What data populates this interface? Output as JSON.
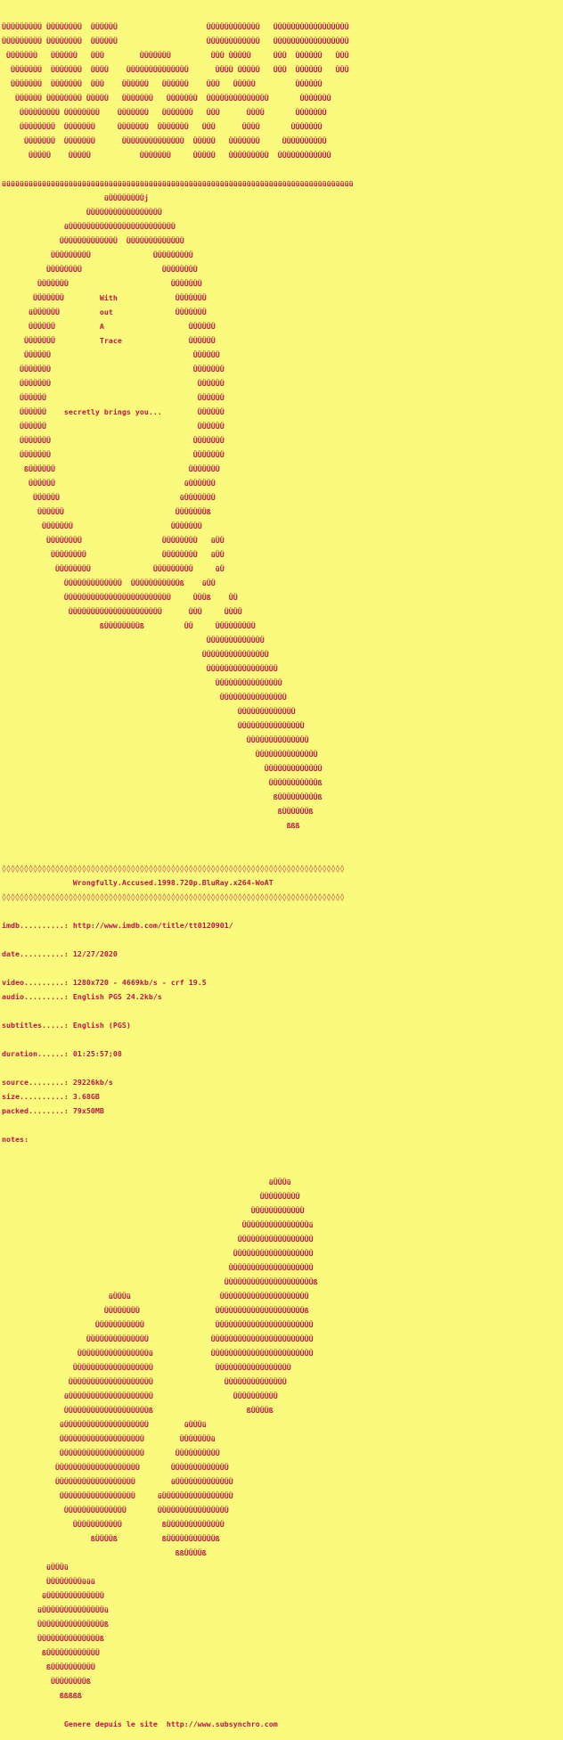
{
  "colors": {
    "background": "#fafa7d",
    "foreground": "#c11248"
  },
  "release_info": {
    "group_name_expanded": [
      "With",
      "out",
      "A",
      "Trace"
    ],
    "tagline": "secretly brings you...",
    "title": "Wrongfully.Accused.1998.720p.BluRay.x264-WoAT",
    "imdb": "http://www.imdb.com/title/tt0120901/",
    "date": "12/27/2020",
    "video": "1280x720 - 4669kb/s - crf 19.5",
    "audio": "English PGS 24.2kb/s",
    "subtitles": "English (PGS)",
    "duration": "01:25:57;08",
    "source": "29226kb/s",
    "size": "3.68GB",
    "packed": "79x50MB",
    "notes": "",
    "footer": "Genere depuis le site  http://www.subsynchro.com"
  },
  "nfo_lines": [
    "ÜÜÜÜÜÜÜÜÜ ÜÜÜÜÜÜÜÜ  ÜÜÜÜÜÜ                    ÜÜÜÜÜÜÜÜÜÜÜÜ   ÜÜÜÜÜÜÜÜÜÜÜÜÜÜÜÜÜ",
    "ÜÜÜÜÜÜÜÜÜ ÜÜÜÜÜÜÜÜ  ÜÜÜÜÜÜ                    ÜÜÜÜÜÜÜÜÜÜÜÜ   ÜÜÜÜÜÜÜÜÜÜÜÜÜÜÜÜÜ",
    " ÜÜÜÜÜÜÜ   ÜÜÜÜÜÜ   ÜÜÜ        ÜÜÜÜÜÜÜ         ÜÜÜ ÜÜÜÜÜ     ÜÜÜ  ÜÜÜÜÜÜ   ÜÜÜ",
    "  ÜÜÜÜÜÜÜ  ÜÜÜÜÜÜÜ  ÜÜÜÜ    ÜÜÜÜÜÜÜÜÜÜÜÜÜÜ      ÜÜÜÜ ÜÜÜÜÜ   ÜÜÜ  ÜÜÜÜÜÜ   ÜÜÜ",
    "  ÜÜÜÜÜÜÜ  ÜÜÜÜÜÜÜ  ÜÜÜ    ÜÜÜÜÜÜ   ÜÜÜÜÜÜ    ÜÜÜ   ÜÜÜÜÜ         ÜÜÜÜÜÜ",
    "   ÜÜÜÜÜÜ ÜÜÜÜÜÜÜÜ ÜÜÜÜÜ   ÜÜÜÜÜÜÜ   ÜÜÜÜÜÜÜ  ÜÜÜÜÜÜÜÜÜÜÜÜÜÜ       ÜÜÜÜÜÜÜ",
    "    ÜÜÜÜÜÜÜÜÜ ÜÜÜÜÜÜÜÜ    ÜÜÜÜÜÜÜ   ÜÜÜÜÜÜÜ   ÜÜÜ      ÜÜÜÜ       ÜÜÜÜÜÜÜ",
    "    ÜÜÜÜÜÜÜÜ  ÜÜÜÜÜÜÜ     ÜÜÜÜÜÜÜ  ÜÜÜÜÜÜÜ   ÜÜÜ      ÜÜÜÜ       ÜÜÜÜÜÜÜ",
    "     ÜÜÜÜÜÜÜ  ÜÜÜÜÜÜÜ      ÜÜÜÜÜÜÜÜÜÜÜÜÜÜ  ÜÜÜÜÜ   ÜÜÜÜÜÜÜ     ÜÜÜÜÜÜÜÜÜÜ",
    "      ÜÜÜÜÜ    ÜÜÜÜÜ           ÜÜÜÜÜÜÜ     ÜÜÜÜÜ   ÜÜÜÜÜÜÜÜÜ  ÜÜÜÜÜÜÜÜÜÜÜÜ",
    "",
    "üüüüüüüüüüüüüüüüüüüüüüüüüüüüüüüüüüüüüüüüüüüüüüüüüüüüüüüüüüüüüüüüüüüüüüüüüüüüüüü",
    "                       üÜÜÜÜÜÜÜÜj",
    "                   ÜÜÜÜÜÜÜÜÜÜÜÜÜÜÜÜÜ",
    "              üÜÜÜÜÜÜÜÜÜÜÜÜÜÜÜÜÜÜÜÜÜÜÜÜ",
    "             ÜÜÜÜÜÜÜÜÜÜÜÜÜ  ÜÜÜÜÜÜÜÜÜÜÜÜÜ",
    "           ÜÜÜÜÜÜÜÜÜ              ÜÜÜÜÜÜÜÜÜ",
    "          ÜÜÜÜÜÜÜÜ                  ÜÜÜÜÜÜÜÜ",
    "        ÜÜÜÜÜÜÜ                       ÜÜÜÜÜÜÜ",
    "       ÜÜÜÜÜÜÜ        With             ÜÜÜÜÜÜÜ",
    "      üÜÜÜÜÜÜ         out              ÜÜÜÜÜÜÜ",
    "      ÜÜÜÜÜÜ          A                   ÜÜÜÜÜÜ",
    "     ÜÜÜÜÜÜÜ          Trace               ÜÜÜÜÜÜ",
    "     ÜÜÜÜÜÜ                                ÜÜÜÜÜÜ",
    "    ÜÜÜÜÜÜÜ                                ÜÜÜÜÜÜÜ",
    "    ÜÜÜÜÜÜÜ                                 ÜÜÜÜÜÜ",
    "    ÜÜÜÜÜÜ                                  ÜÜÜÜÜÜ",
    "    ÜÜÜÜÜÜ    secretly brings you...        ÜÜÜÜÜÜ",
    "    ÜÜÜÜÜÜ                                  ÜÜÜÜÜÜ",
    "    ÜÜÜÜÜÜÜ                                ÜÜÜÜÜÜÜ",
    "    ÜÜÜÜÜÜÜ                                ÜÜÜÜÜÜÜ",
    "     ßÜÜÜÜÜÜ                              ÜÜÜÜÜÜÜ",
    "      ÜÜÜÜÜÜ                             üÜÜÜÜÜÜ",
    "       ÜÜÜÜÜÜ                           üÜÜÜÜÜÜÜ",
    "        ÜÜÜÜÜÜ                         ÜÜÜÜÜÜÜß",
    "         ÜÜÜÜÜÜÜ                      ÜÜÜÜÜÜÜ",
    "          ÜÜÜÜÜÜÜÜ                  ÜÜÜÜÜÜÜÜ   üÜÜ",
    "           ÜÜÜÜÜÜÜÜ                 ÜÜÜÜÜÜÜÜ   üÜÜ",
    "            ÜÜÜÜÜÜÜÜ              ÜÜÜÜÜÜÜÜÜ     üÜ",
    "              ÜÜÜÜÜÜÜÜÜÜÜÜÜ  ÜÜÜÜÜÜÜÜÜÜÜß    üÜÜ",
    "              ÜÜÜÜÜÜÜÜÜÜÜÜÜÜÜÜÜÜÜÜÜÜÜÜ     ÜÜÜß    ÜÜ",
    "               ÜÜÜÜÜÜÜÜÜÜÜÜÜÜÜÜÜÜÜÜÜ      ÜÜÜ     ÜÜÜÜ",
    "                      ßÜÜÜÜÜÜÜÜß         ÜÜ     ÜÜÜÜÜÜÜÜÜ",
    "                                              ÜÜÜÜÜÜÜÜÜÜÜÜÜ",
    "                                             ÜÜÜÜÜÜÜÜÜÜÜÜÜÜÜ",
    "                                              ÜÜÜÜÜÜÜÜÜÜÜÜÜÜÜÜ",
    "                                                ÜÜÜÜÜÜÜÜÜÜÜÜÜÜÜ",
    "                                                 ÜÜÜÜÜÜÜÜÜÜÜÜÜÜÜ",
    "                                                     ÜÜÜÜÜÜÜÜÜÜÜÜÜ",
    "                                                     ÜÜÜÜÜÜÜÜÜÜÜÜÜÜÜ",
    "                                                       ÜÜÜÜÜÜÜÜÜÜÜÜÜÜ",
    "                                                         ÜÜÜÜÜÜÜÜÜÜÜÜÜÜ",
    "                                                           ÜÜÜÜÜÜÜÜÜÜÜÜÜ",
    "                                                            ÜÜÜÜÜÜÜÜÜÜÜß",
    "                                                             ßÜÜÜÜÜÜÜÜÜß",
    "                                                              ßÜÜÜÜÜÜß",
    "                                                                ßßß",
    "",
    "",
    "◊◊◊◊◊◊◊◊◊◊◊◊◊◊◊◊◊◊◊◊◊◊◊◊◊◊◊◊◊◊◊◊◊◊◊◊◊◊◊◊◊◊◊◊◊◊◊◊◊◊◊◊◊◊◊◊◊◊◊◊◊◊◊◊◊◊◊◊◊◊◊◊◊◊◊◊◊",
    "                Wrongfully.Accused.1998.720p.BluRay.x264-WoAT",
    "◊◊◊◊◊◊◊◊◊◊◊◊◊◊◊◊◊◊◊◊◊◊◊◊◊◊◊◊◊◊◊◊◊◊◊◊◊◊◊◊◊◊◊◊◊◊◊◊◊◊◊◊◊◊◊◊◊◊◊◊◊◊◊◊◊◊◊◊◊◊◊◊◊◊◊◊◊",
    "",
    "imdb..........: http://www.imdb.com/title/tt0120901/",
    "",
    "date..........: 12/27/2020",
    "",
    "video.........: 1280x720 - 4669kb/s - crf 19.5",
    "audio.........: English PGS 24.2kb/s",
    "",
    "subtitles.....: English (PGS)",
    "",
    "duration......: 01:25:57;08",
    "",
    "source........: 29226kb/s",
    "size..........: 3.68GB",
    "packed........: 79x50MB",
    "",
    "notes:",
    "",
    "",
    "                                                            üÜÜÜü",
    "                                                          ÜÜÜÜÜÜÜÜÜ",
    "                                                        ÜÜÜÜÜÜÜÜÜÜÜÜ",
    "                                                      ÜÜÜÜÜÜÜÜÜÜÜÜÜÜÜü",
    "                                                     ÜÜÜÜÜÜÜÜÜÜÜÜÜÜÜÜÜ",
    "                                                    ÜÜÜÜÜÜÜÜÜÜÜÜÜÜÜÜÜÜ",
    "                                                   ÜÜÜÜÜÜÜÜÜÜÜÜÜÜÜÜÜÜÜ",
    "                                                  ÜÜÜÜÜÜÜÜÜÜÜÜÜÜÜÜÜÜÜÜß",
    "                        üÜÜÜü                    ÜÜÜÜÜÜÜÜÜÜÜÜÜÜÜÜÜÜÜÜ",
    "                       ÜÜÜÜÜÜÜÜ                 ÜÜÜÜÜÜÜÜÜÜÜÜÜÜÜÜÜÜÜÜß",
    "                     ÜÜÜÜÜÜÜÜÜÜÜ                ÜÜÜÜÜÜÜÜÜÜÜÜÜÜÜÜÜÜÜÜÜÜ",
    "                   ÜÜÜÜÜÜÜÜÜÜÜÜÜÜ              ÜÜÜÜÜÜÜÜÜÜÜÜÜÜÜÜÜÜÜÜÜÜÜ",
    "                 ÜÜÜÜÜÜÜÜÜÜÜÜÜÜÜÜü             ÜÜÜÜÜÜÜÜÜÜÜÜÜÜÜÜÜÜÜÜÜÜÜ",
    "                ÜÜÜÜÜÜÜÜÜÜÜÜÜÜÜÜÜÜ              ÜÜÜÜÜÜÜÜÜÜÜÜÜÜÜÜÜ",
    "               ÜÜÜÜÜÜÜÜÜÜÜÜÜÜÜÜÜÜÜ                ÜÜÜÜÜÜÜÜÜÜÜÜÜÜ",
    "              üÜÜÜÜÜÜÜÜÜÜÜÜÜÜÜÜÜÜÜ                  ÜÜÜÜÜÜÜÜÜÜ",
    "              ÜÜÜÜÜÜÜÜÜÜÜÜÜÜÜÜÜÜÜß                     ßÜÜÜÜß",
    "             üÜÜÜÜÜÜÜÜÜÜÜÜÜÜÜÜÜÜÜ        üÜÜÜü",
    "             ÜÜÜÜÜÜÜÜÜÜÜÜÜÜÜÜÜÜÜ        ÜÜÜÜÜÜÜü",
    "             ÜÜÜÜÜÜÜÜÜÜÜÜÜÜÜÜÜÜÜ       ÜÜÜÜÜÜÜÜÜÜ",
    "            ÜÜÜÜÜÜÜÜÜÜÜÜÜÜÜÜÜÜÜ       ÜÜÜÜÜÜÜÜÜÜÜÜÜ",
    "            ÜÜÜÜÜÜÜÜÜÜÜÜÜÜÜÜÜÜ        üÜÜÜÜÜÜÜÜÜÜÜÜÜ",
    "             ÜÜÜÜÜÜÜÜÜÜÜÜÜÜÜÜÜ     üÜÜÜÜÜÜÜÜÜÜÜÜÜÜÜÜ",
    "              ÜÜÜÜÜÜÜÜÜÜÜÜÜÜ       ÜÜÜÜÜÜÜÜÜÜÜÜÜÜÜÜ",
    "                ÜÜÜÜÜÜÜÜÜÜÜ         ßÜÜÜÜÜÜÜÜÜÜÜÜÜ",
    "                    ßÜÜÜÜß          ßÜÜÜÜÜÜÜÜÜÜÜß",
    "                                       ßßÜÜÜÜß",
    "          üÜÜÜü",
    "          ÜÜÜÜÜÜÜÜüüü",
    "         üÜÜÜÜÜÜÜÜÜÜÜÜÜ",
    "        üÜÜÜÜÜÜÜÜÜÜÜÜÜÜü",
    "        ÜÜÜÜÜÜÜÜÜÜÜÜÜÜÜß",
    "        ÜÜÜÜÜÜÜÜÜÜÜÜÜÜß",
    "         ßÜÜÜÜÜÜÜÜÜÜÜÜ",
    "          ßÜÜÜÜÜÜÜÜÜÜ",
    "           ÜÜÜÜÜÜÜÜß",
    "             ßßßßß",
    "",
    "              Genere depuis le site  http://www.subsynchro.com"
  ]
}
